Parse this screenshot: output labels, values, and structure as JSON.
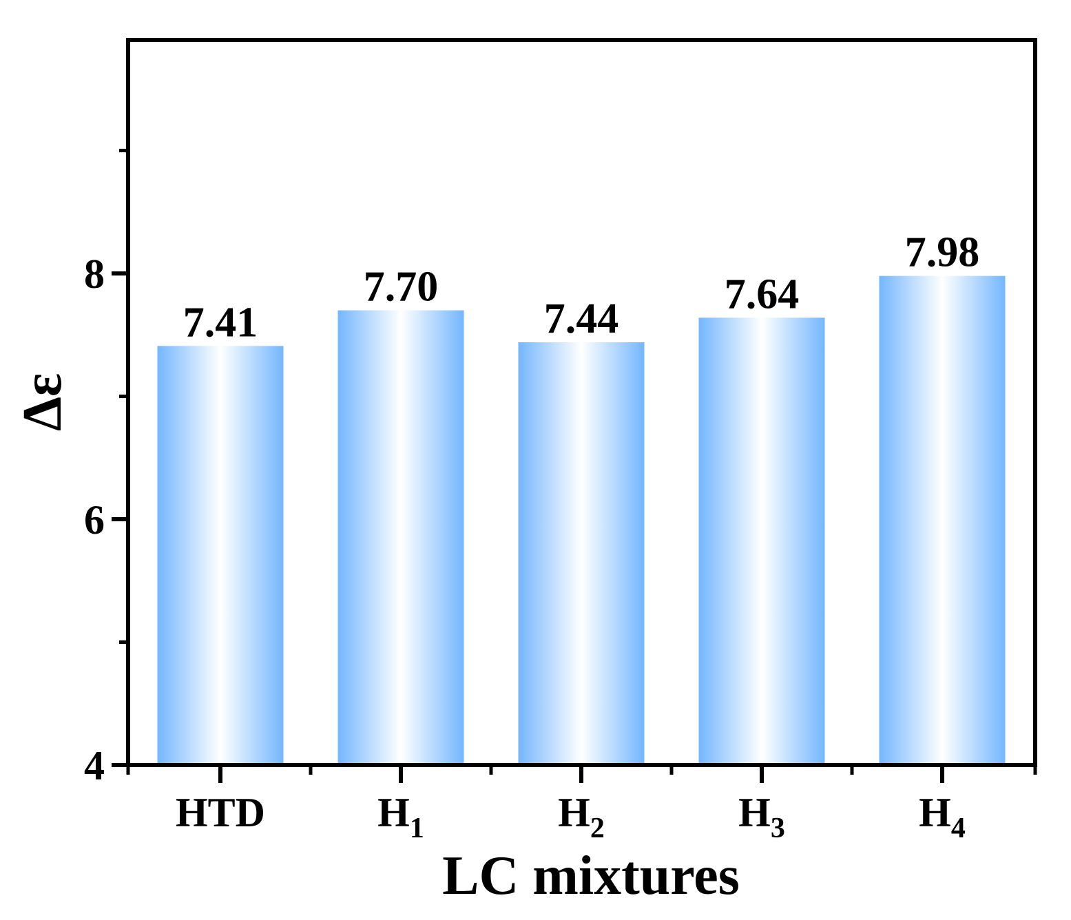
{
  "chart_data": {
    "type": "bar",
    "categories": [
      {
        "base": "HTD",
        "sub": ""
      },
      {
        "base": "H",
        "sub": "1"
      },
      {
        "base": "H",
        "sub": "2"
      },
      {
        "base": "H",
        "sub": "3"
      },
      {
        "base": "H",
        "sub": "4"
      }
    ],
    "values": [
      7.41,
      7.7,
      7.44,
      7.64,
      7.98
    ],
    "data_labels": [
      "7.41",
      "7.70",
      "7.44",
      "7.64",
      "7.98"
    ],
    "xlabel": "LC mixtures",
    "ylabel": "Δε",
    "ylim": [
      4,
      9.9
    ],
    "yticks": [
      4,
      6,
      8
    ],
    "yticks_labels": [
      "4",
      "6",
      "8"
    ],
    "y_minor_ticks": [
      5,
      7,
      9
    ],
    "grid": false,
    "legend": "none",
    "colors": {
      "bar_edge": "#74b6ff",
      "bar_center": "#ffffff",
      "axis": "#000000"
    }
  }
}
